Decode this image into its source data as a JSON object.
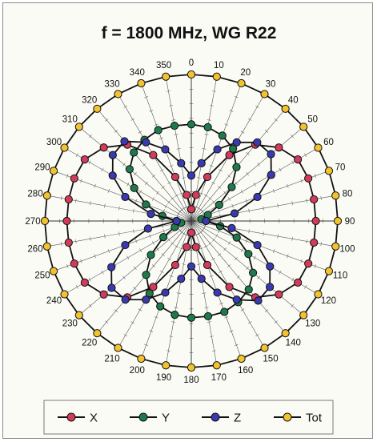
{
  "chart_data": {
    "type": "polar-line",
    "title": "f = 1800 MHz, WG R22",
    "angle_labels": [
      0,
      10,
      20,
      30,
      40,
      50,
      60,
      70,
      80,
      90,
      100,
      110,
      120,
      130,
      140,
      150,
      160,
      170,
      180,
      190,
      200,
      210,
      220,
      230,
      240,
      250,
      260,
      270,
      280,
      290,
      300,
      310,
      320,
      330,
      340,
      350
    ],
    "radial_range": [
      0,
      1
    ],
    "radial_grid_rings": 10,
    "angular_spokes_step_deg": 10,
    "legend_placement": "bottom",
    "angles_deg": [
      0,
      10,
      20,
      30,
      40,
      50,
      60,
      70,
      80,
      90,
      100,
      110,
      120,
      130,
      140,
      150,
      160,
      170,
      180,
      190,
      200,
      210,
      220,
      230,
      240,
      250,
      260,
      270,
      280,
      290,
      300,
      310,
      320,
      330,
      340,
      350
    ],
    "series": [
      {
        "name": "X",
        "color": "#d23c5a",
        "values": [
          0.08,
          0.18,
          0.32,
          0.52,
          0.68,
          0.78,
          0.84,
          0.85,
          0.85,
          0.85,
          0.85,
          0.85,
          0.84,
          0.78,
          0.68,
          0.52,
          0.32,
          0.18,
          0.08,
          0.18,
          0.32,
          0.52,
          0.68,
          0.78,
          0.84,
          0.85,
          0.85,
          0.85,
          0.85,
          0.85,
          0.84,
          0.78,
          0.68,
          0.52,
          0.32,
          0.18
        ]
      },
      {
        "name": "Y",
        "color": "#1e7a4a",
        "values": [
          0.66,
          0.65,
          0.62,
          0.57,
          0.48,
          0.36,
          0.22,
          0.12,
          0.07,
          0.1,
          0.2,
          0.33,
          0.45,
          0.55,
          0.61,
          0.64,
          0.66,
          0.66,
          0.66,
          0.65,
          0.62,
          0.57,
          0.48,
          0.36,
          0.22,
          0.12,
          0.07,
          0.1,
          0.2,
          0.33,
          0.45,
          0.55,
          0.61,
          0.64,
          0.66,
          0.66
        ]
      },
      {
        "name": "Z",
        "color": "#3a3ab0",
        "values": [
          0.31,
          0.4,
          0.52,
          0.62,
          0.7,
          0.71,
          0.63,
          0.48,
          0.3,
          0.1,
          0.28,
          0.48,
          0.62,
          0.7,
          0.71,
          0.62,
          0.52,
          0.4,
          0.31,
          0.4,
          0.52,
          0.62,
          0.7,
          0.71,
          0.63,
          0.48,
          0.3,
          0.1,
          0.28,
          0.48,
          0.62,
          0.7,
          0.71,
          0.62,
          0.52,
          0.4
        ]
      },
      {
        "name": "Tot",
        "color": "#f2c230",
        "values": [
          1.0,
          1.0,
          1.0,
          1.0,
          1.0,
          1.0,
          1.0,
          1.0,
          1.0,
          1.0,
          1.0,
          1.0,
          1.0,
          1.0,
          1.0,
          1.0,
          1.0,
          1.0,
          1.0,
          1.0,
          1.0,
          1.0,
          1.0,
          1.0,
          1.0,
          1.0,
          1.0,
          1.0,
          1.0,
          1.0,
          1.0,
          1.0,
          1.0,
          1.0,
          1.0,
          1.0
        ]
      }
    ]
  }
}
